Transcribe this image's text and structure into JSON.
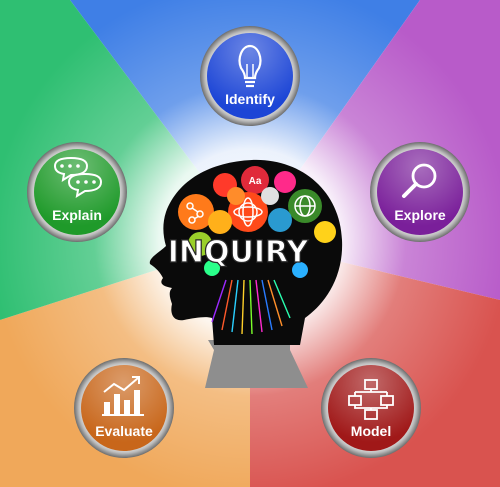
{
  "center": {
    "title": "INQUIRY",
    "icon_text": "Aa"
  },
  "stages": [
    {
      "id": "identify",
      "label": "Identify",
      "icon": "lightbulb-icon",
      "color": "#1c45d6"
    },
    {
      "id": "explore",
      "label": "Explore",
      "icon": "magnifier-icon",
      "color": "#7a1f9a"
    },
    {
      "id": "model",
      "label": "Model",
      "icon": "flowchart-icon",
      "color": "#a01818"
    },
    {
      "id": "evaluate",
      "label": "Evaluate",
      "icon": "bar-chart-icon",
      "color": "#c8661a"
    },
    {
      "id": "explain",
      "label": "Explain",
      "icon": "speech-bubbles-icon",
      "color": "#1f9a2a"
    }
  ],
  "colors": {
    "sector_identify": "#3f7fe6",
    "sector_explore": "#b85bc9",
    "sector_model": "#d9534f",
    "sector_evaluate": "#f0a85a",
    "sector_explain": "#2fbf72",
    "silhouette": "#0a0a0a",
    "neck": "#8e8e8e"
  }
}
